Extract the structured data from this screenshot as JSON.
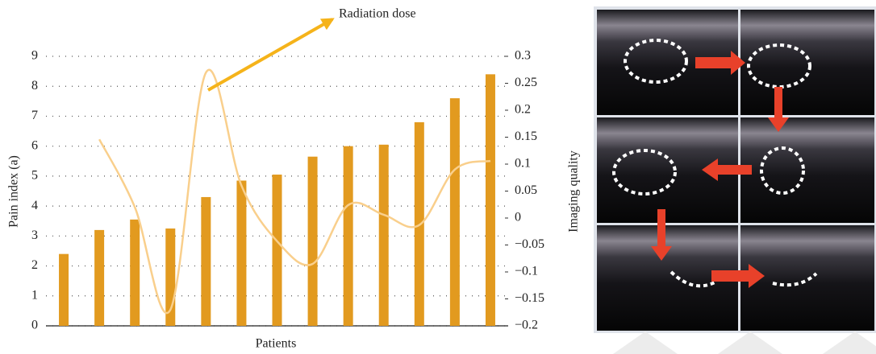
{
  "chart_data": {
    "type": "bar-line",
    "annotation": "Radiation dose",
    "xlabel": "Patients",
    "ylabel": "Pain index (a)",
    "y2label": "Imaging quality",
    "categories": [
      null,
      null,
      null,
      null,
      null,
      null,
      null,
      null,
      null,
      null,
      null,
      null,
      null
    ],
    "series": [
      {
        "type": "bar",
        "color": "#e29a1f",
        "values": [
          2.4,
          3.2,
          3.55,
          3.25,
          4.3,
          4.85,
          5.05,
          5.65,
          6.0,
          6.05,
          6.8,
          7.6,
          8.4
        ]
      },
      {
        "type": "line",
        "axis": "y2",
        "color": "#f9cf8c",
        "values": [
          null,
          0.146,
          0.02,
          -0.17,
          0.27,
          0.06,
          -0.043,
          -0.085,
          0.024,
          0.006,
          -0.013,
          0.09,
          0.106
        ]
      }
    ],
    "ylim": [
      0,
      9
    ],
    "yticks": [
      0,
      1,
      2,
      3,
      4,
      5,
      6,
      7,
      8,
      9
    ],
    "y2lim": [
      -0.2,
      0.3
    ],
    "y2ticks": [
      {
        "value": -0.2,
        "label": "−0.2"
      },
      {
        "value": -0.15,
        "label": "−0.15"
      },
      {
        "value": -0.1,
        "label": "−0.1"
      },
      {
        "value": -0.05,
        "label": "−0.05"
      },
      0,
      0.05,
      0.1,
      0.15,
      0.2,
      0.25,
      0.3
    ],
    "grid": true
  }
}
